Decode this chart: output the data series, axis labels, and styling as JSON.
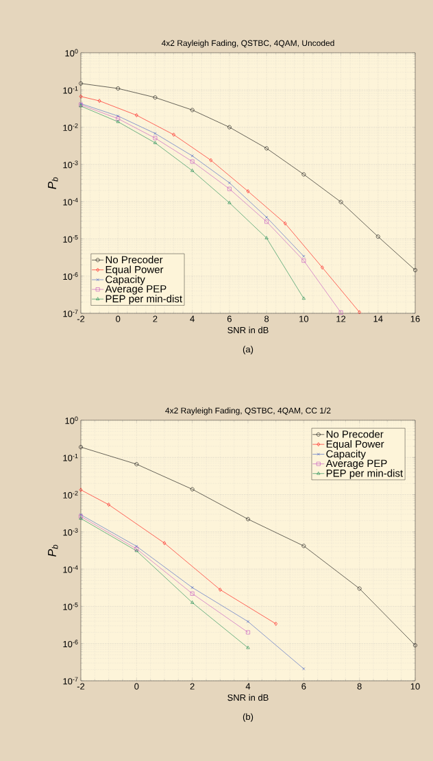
{
  "chart_data": [
    {
      "type": "line",
      "title": "4x2 Rayleigh Fading, QSTBC, 4QAM, Uncoded",
      "xlabel": "SNR in dB",
      "ylabel": "P$_{b}$",
      "annotations": [
        "(a)"
      ],
      "log": "y",
      "grid": true,
      "legend": "bottom left",
      "xlim": [
        -2,
        16
      ],
      "xticks": [
        -2,
        0,
        2,
        4,
        6,
        8,
        10,
        12,
        14,
        16
      ],
      "ylim": [
        1e-07,
        1
      ],
      "yticks": [
        {
          "value": 1e-07,
          "label": "10$^{-7}$"
        },
        {
          "value": 1e-06,
          "label": "10$^{-6}$"
        },
        {
          "value": 1e-05,
          "label": "10$^{-5}$"
        },
        {
          "value": 0.0001,
          "label": "10$^{-4}$"
        },
        {
          "value": 0.001,
          "label": "10$^{-3}$"
        },
        {
          "value": 0.01,
          "label": "10$^{-2}$"
        },
        {
          "value": 0.1,
          "label": "10$^{-1}$"
        },
        {
          "value": 1,
          "label": "10$^{0}$"
        }
      ],
      "series": [
        {
          "name": "No Precoder",
          "color": "#000000",
          "marker": "circle",
          "x": [
            -2,
            0,
            2,
            4,
            6,
            8,
            10,
            12,
            14,
            16
          ],
          "values": [
            0.15,
            0.11,
            0.063,
            0.029,
            0.01,
            0.0027,
            0.00054,
            9.8e-05,
            1.15e-05,
            1.45e-06
          ]
        },
        {
          "name": "Equal Power",
          "color": "#ff0000",
          "marker": "diamond",
          "x": [
            -2,
            -1,
            1,
            3,
            5,
            7,
            9,
            11,
            13
          ],
          "values": [
            0.067,
            0.051,
            0.021,
            0.0063,
            0.0013,
            0.00019,
            2.6e-05,
            1.7e-06,
            1.07e-07
          ]
        },
        {
          "name": "Capacity",
          "color": "#3d5cc2",
          "marker": "cross",
          "x": [
            -2,
            0,
            2,
            4,
            6,
            8,
            10
          ],
          "values": [
            0.043,
            0.02,
            0.0068,
            0.0017,
            0.00032,
            3.8e-05,
            3.4e-06
          ]
        },
        {
          "name": "Average PEP",
          "color": "#c34fc0",
          "marker": "square",
          "x": [
            -2,
            0,
            2,
            4,
            6,
            8,
            10,
            12
          ],
          "values": [
            0.04,
            0.017,
            0.0051,
            0.0012,
            0.00022,
            2.9e-05,
            2.6e-06,
            1.05e-07
          ]
        },
        {
          "name": "PEP per min-dist",
          "color": "#10864a",
          "marker": "triangle",
          "x": [
            -2,
            0,
            2,
            4,
            6,
            8,
            10
          ],
          "values": [
            0.037,
            0.014,
            0.0038,
            0.00068,
            9.3e-05,
            1.05e-05,
            2.5e-07
          ]
        }
      ]
    },
    {
      "type": "line",
      "title": "4x2 Rayleigh Fading, QSTBC, 4QAM, CC 1/2",
      "xlabel": "SNR in dB",
      "ylabel": "P$_{b}$",
      "annotations": [
        "(b)"
      ],
      "log": "y",
      "grid": true,
      "legend": "top right",
      "xlim": [
        -2,
        10
      ],
      "xticks": [
        -2,
        0,
        2,
        4,
        6,
        8,
        10
      ],
      "ylim": [
        1e-07,
        1
      ],
      "yticks": [
        {
          "value": 1e-07,
          "label": "10$^{-7}$"
        },
        {
          "value": 1e-06,
          "label": "10$^{-6}$"
        },
        {
          "value": 1e-05,
          "label": "10$^{-5}$"
        },
        {
          "value": 0.0001,
          "label": "10$^{-4}$"
        },
        {
          "value": 0.001,
          "label": "10$^{-3}$"
        },
        {
          "value": 0.01,
          "label": "10$^{-2}$"
        },
        {
          "value": 0.1,
          "label": "10$^{-1}$"
        },
        {
          "value": 1,
          "label": "10$^{0}$"
        }
      ],
      "series": [
        {
          "name": "No Precoder",
          "color": "#000000",
          "marker": "circle",
          "x": [
            -2,
            0,
            2,
            4,
            6,
            8,
            10
          ],
          "values": [
            0.19,
            0.066,
            0.014,
            0.0022,
            0.00042,
            3e-05,
            9e-07
          ]
        },
        {
          "name": "Equal Power",
          "color": "#ff0000",
          "marker": "diamond",
          "x": [
            -2,
            -1,
            1,
            3,
            5
          ],
          "values": [
            0.0135,
            0.0054,
            0.0005,
            2.8e-05,
            3.4e-06
          ]
        },
        {
          "name": "Capacity",
          "color": "#3d5cc2",
          "marker": "cross",
          "x": [
            -2,
            0,
            2,
            4,
            6
          ],
          "values": [
            0.0029,
            0.00041,
            3.2e-05,
            3.9e-06,
            2.1e-07
          ]
        },
        {
          "name": "Average PEP",
          "color": "#c34fc0",
          "marker": "square",
          "x": [
            -2,
            0,
            2,
            4
          ],
          "values": [
            0.0026,
            0.00035,
            2.2e-05,
            2e-06
          ]
        },
        {
          "name": "PEP per min-dist",
          "color": "#10864a",
          "marker": "triangle",
          "x": [
            -2,
            0,
            2,
            4
          ],
          "values": [
            0.0023,
            0.00031,
            1.26e-05,
            7.7e-07
          ]
        }
      ]
    }
  ]
}
